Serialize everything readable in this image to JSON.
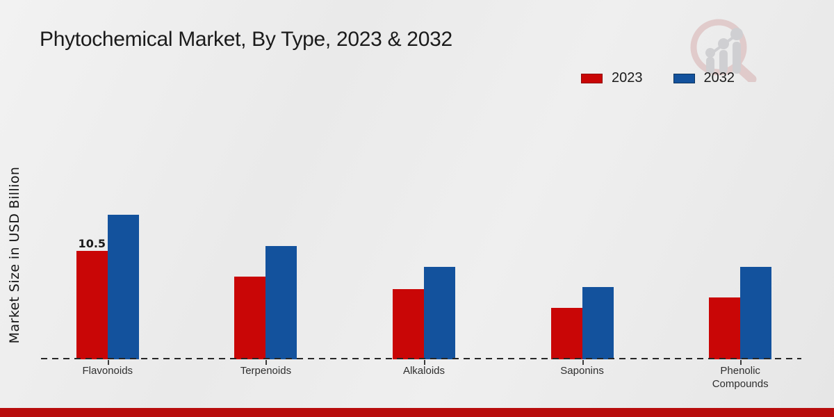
{
  "page": {
    "title": "Phytochemical Market, By Type, 2023 & 2032"
  },
  "chart_data": {
    "type": "bar",
    "title": "Phytochemical Market, By Type, 2023 & 2032",
    "xlabel": "",
    "ylabel": "Market Size in USD Billion",
    "categories": [
      "Flavonoids",
      "Terpenoids",
      "Alkaloids",
      "Saponins",
      "Phenolic Compounds"
    ],
    "series": [
      {
        "name": "2023",
        "color": "#c90606",
        "edge_color": "#8f0606",
        "values": [
          10.5,
          8.0,
          6.8,
          5.0,
          6.0
        ],
        "data_labels": [
          "10.5",
          null,
          null,
          null,
          null
        ]
      },
      {
        "name": "2032",
        "color": "#13529d",
        "edge_color": "#0c355f",
        "values": [
          14.0,
          11.0,
          9.0,
          7.0,
          9.0
        ],
        "data_labels": [
          null,
          null,
          null,
          null,
          null
        ]
      }
    ],
    "ylim": [
      0,
      15.5
    ],
    "grid": false,
    "legend_position": "top-right",
    "baseline_style": "dashed",
    "y_axis_ticks_visible": false
  },
  "colors": {
    "background": "#ebebeb",
    "title_text": "#1b1b1b",
    "category_text": "#2e2e2e",
    "baseline": "#262626",
    "footer_bar": "#b80d0d",
    "watermark_pink": "#cf9b9b",
    "watermark_gray": "#b9b9bd"
  },
  "icons": {
    "watermark": "magnifier-bar-chart-logo"
  }
}
